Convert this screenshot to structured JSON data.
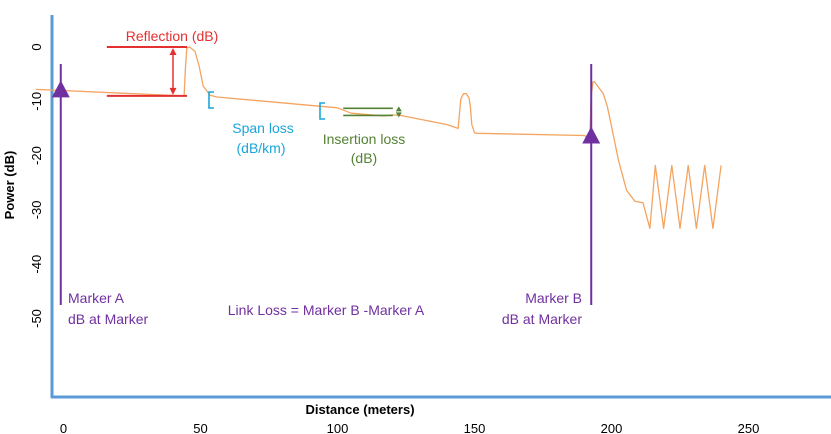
{
  "chart_data": {
    "type": "line",
    "title": "",
    "xlabel": "Distance (meters)",
    "ylabel": "Power (dB)",
    "xlim": [
      0,
      280
    ],
    "ylim": [
      -55,
      3
    ],
    "x_ticks": [
      0,
      50,
      100,
      150,
      200,
      250
    ],
    "y_ticks": [
      0,
      -10,
      -20,
      -30,
      -40,
      -50
    ],
    "grid": false,
    "series": [
      {
        "name": "",
        "color": "#f4a460",
        "x": [
          -10,
          44,
          44.5,
          45,
          46,
          48,
          49.5,
          51,
          53.5,
          56,
          100,
          105,
          117,
          120,
          123,
          140,
          144,
          145,
          146,
          147,
          148,
          148.5,
          149,
          150,
          151,
          190,
          191,
          192,
          192.6,
          193.2,
          193.8,
          194.5,
          195.5,
          197,
          198.5,
          200,
          202.5,
          205.5,
          208.5,
          211.5,
          214,
          216,
          219,
          222,
          225,
          228,
          231,
          234,
          237,
          240
        ],
        "y": [
          -7.8,
          -9,
          -4,
          -0.2,
          0,
          -0.8,
          -3.5,
          -7.2,
          -8.9,
          -9.2,
          -11.2,
          -12.2,
          -12.7,
          -12.5,
          -12.6,
          -14.3,
          -15,
          -9.6,
          -8.6,
          -8.6,
          -9.4,
          -11,
          -14.3,
          -15.8,
          -15.9,
          -16.3,
          -16.5,
          -17.3,
          -9,
          -6.4,
          -6.4,
          -6.9,
          -7.6,
          -8.6,
          -11,
          -14.6,
          -20.8,
          -26.4,
          -28.4,
          -28.7,
          -33.4,
          -21.8,
          -33.4,
          -21.8,
          -33.4,
          -21.8,
          -33.4,
          -21.8,
          -33.4,
          -21.8
        ]
      }
    ],
    "markers": [
      {
        "label": "Marker A",
        "sublabel": "dB at Marker",
        "x": -1,
        "y": -7.8
      },
      {
        "label": "Marker B",
        "sublabel": "dB at Marker",
        "x": 192.6,
        "y": -16.3
      }
    ],
    "annotations": {
      "reflection": {
        "text": "Reflection (dB)",
        "y_top": 0,
        "y_bottom": -9,
        "x_from": 18,
        "x_to": 44
      },
      "span_loss": {
        "line1": "Span loss",
        "line2": "(dB/km)",
        "x1": 53,
        "x2": 100
      },
      "insertion_loss": {
        "line1": "Insertion loss",
        "line2": "(dB)",
        "x_from": 101,
        "x_to": 118,
        "y_top": -11.3,
        "y_bottom": -12.6
      },
      "link_loss": "Link Loss = Marker B -Marker A"
    },
    "colors": {
      "trace": "#f4a460",
      "axis": "#5b9bd5",
      "marker": "#7030a0",
      "reflection": "#e53030",
      "span_loss": "#1aa6d9",
      "insertion_loss": "#548235"
    }
  }
}
